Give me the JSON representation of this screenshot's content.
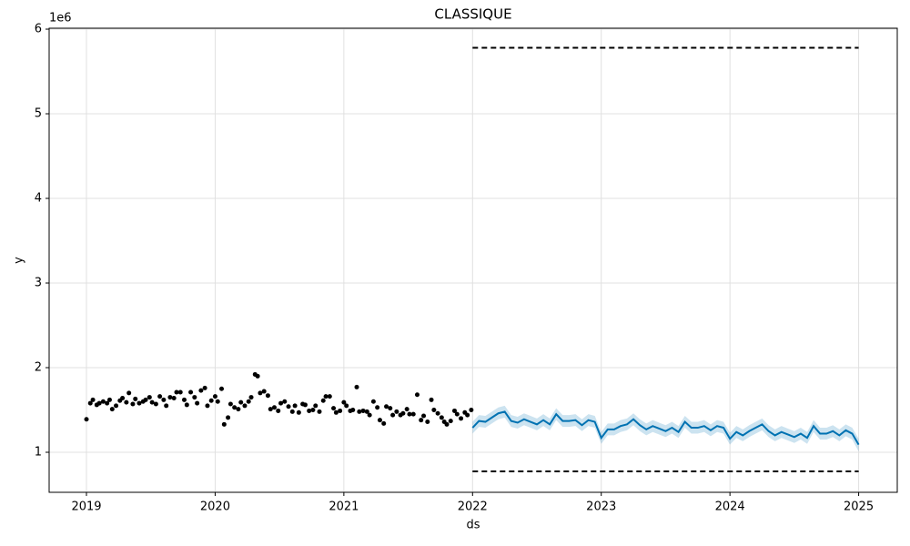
{
  "chart_data": {
    "type": "forecast",
    "title": "CLASSIQUE",
    "xlabel": "ds",
    "ylabel": "y",
    "y_offset_label": "1e6",
    "xlim": [
      2018.71,
      2025.3
    ],
    "xticks": [
      2019,
      2020,
      2021,
      2022,
      2023,
      2024,
      2025
    ],
    "ylim": [
      0.527,
      6.011
    ],
    "yticks": [
      1,
      2,
      3,
      4,
      5,
      6
    ],
    "grid": true,
    "points": {
      "color": "#000000",
      "x": [
        2019.0,
        2019.03,
        2019.05,
        2019.08,
        2019.1,
        2019.13,
        2019.16,
        2019.18,
        2019.2,
        2019.23,
        2019.26,
        2019.28,
        2019.31,
        2019.33,
        2019.36,
        2019.38,
        2019.41,
        2019.44,
        2019.46,
        2019.49,
        2019.51,
        2019.54,
        2019.57,
        2019.6,
        2019.62,
        2019.65,
        2019.68,
        2019.7,
        2019.73,
        2019.76,
        2019.78,
        2019.81,
        2019.84,
        2019.86,
        2019.89,
        2019.92,
        2019.94,
        2019.97,
        2020.0,
        2020.02,
        2020.05,
        2020.07,
        2020.1,
        2020.12,
        2020.15,
        2020.18,
        2020.2,
        2020.23,
        2020.26,
        2020.28,
        2020.31,
        2020.33,
        2020.35,
        2020.38,
        2020.41,
        2020.43,
        2020.46,
        2020.49,
        2020.51,
        2020.54,
        2020.57,
        2020.6,
        2020.62,
        2020.65,
        2020.68,
        2020.7,
        2020.73,
        2020.76,
        2020.78,
        2020.81,
        2020.84,
        2020.86,
        2020.89,
        2020.92,
        2020.94,
        2020.97,
        2021.0,
        2021.02,
        2021.05,
        2021.07,
        2021.1,
        2021.12,
        2021.15,
        2021.18,
        2021.2,
        2021.23,
        2021.26,
        2021.28,
        2021.31,
        2021.33,
        2021.36,
        2021.38,
        2021.41,
        2021.44,
        2021.46,
        2021.49,
        2021.51,
        2021.54,
        2021.57,
        2021.6,
        2021.62,
        2021.65,
        2021.68,
        2021.7,
        2021.73,
        2021.76,
        2021.78,
        2021.8,
        2021.83,
        2021.86,
        2021.88,
        2021.91,
        2021.94,
        2021.96,
        2021.99
      ],
      "values": [
        1.39,
        1.58,
        1.62,
        1.56,
        1.58,
        1.6,
        1.58,
        1.62,
        1.51,
        1.55,
        1.61,
        1.64,
        1.59,
        1.7,
        1.57,
        1.63,
        1.58,
        1.6,
        1.62,
        1.65,
        1.59,
        1.57,
        1.66,
        1.62,
        1.55,
        1.65,
        1.64,
        1.71,
        1.71,
        1.62,
        1.56,
        1.71,
        1.65,
        1.58,
        1.73,
        1.76,
        1.55,
        1.61,
        1.66,
        1.6,
        1.75,
        1.33,
        1.41,
        1.57,
        1.53,
        1.51,
        1.59,
        1.55,
        1.6,
        1.65,
        1.92,
        1.9,
        1.7,
        1.72,
        1.67,
        1.51,
        1.53,
        1.49,
        1.58,
        1.6,
        1.54,
        1.48,
        1.55,
        1.47,
        1.57,
        1.56,
        1.49,
        1.5,
        1.55,
        1.48,
        1.61,
        1.66,
        1.66,
        1.52,
        1.47,
        1.49,
        1.59,
        1.55,
        1.49,
        1.5,
        1.77,
        1.48,
        1.49,
        1.48,
        1.44,
        1.6,
        1.53,
        1.38,
        1.34,
        1.54,
        1.52,
        1.44,
        1.48,
        1.44,
        1.46,
        1.51,
        1.45,
        1.45,
        1.68,
        1.38,
        1.43,
        1.36,
        1.62,
        1.5,
        1.46,
        1.41,
        1.36,
        1.33,
        1.37,
        1.49,
        1.45,
        1.4,
        1.47,
        1.44,
        1.5
      ]
    },
    "forecast": {
      "color": "#0072b2",
      "band_color": "#0072b2",
      "x": [
        2022.0,
        2022.05,
        2022.1,
        2022.15,
        2022.2,
        2022.25,
        2022.3,
        2022.35,
        2022.4,
        2022.45,
        2022.5,
        2022.55,
        2022.6,
        2022.65,
        2022.7,
        2022.75,
        2022.8,
        2022.85,
        2022.9,
        2022.95,
        2023.0,
        2023.05,
        2023.1,
        2023.15,
        2023.2,
        2023.25,
        2023.3,
        2023.35,
        2023.4,
        2023.45,
        2023.5,
        2023.55,
        2023.6,
        2023.65,
        2023.7,
        2023.75,
        2023.8,
        2023.85,
        2023.9,
        2023.95,
        2024.0,
        2024.05,
        2024.1,
        2024.15,
        2024.2,
        2024.25,
        2024.3,
        2024.35,
        2024.4,
        2024.45,
        2024.5,
        2024.55,
        2024.6,
        2024.65,
        2024.7,
        2024.75,
        2024.8,
        2024.85,
        2024.9,
        2024.95,
        2025.0
      ],
      "values": [
        1.29,
        1.37,
        1.36,
        1.41,
        1.46,
        1.48,
        1.37,
        1.35,
        1.39,
        1.36,
        1.33,
        1.38,
        1.33,
        1.45,
        1.37,
        1.37,
        1.38,
        1.32,
        1.38,
        1.36,
        1.17,
        1.27,
        1.27,
        1.31,
        1.33,
        1.39,
        1.32,
        1.27,
        1.31,
        1.28,
        1.25,
        1.29,
        1.24,
        1.36,
        1.29,
        1.29,
        1.31,
        1.26,
        1.31,
        1.29,
        1.16,
        1.24,
        1.2,
        1.25,
        1.29,
        1.33,
        1.25,
        1.2,
        1.24,
        1.21,
        1.18,
        1.22,
        1.17,
        1.31,
        1.22,
        1.22,
        1.25,
        1.2,
        1.26,
        1.22,
        1.09
      ],
      "lower": [
        1.22,
        1.3,
        1.29,
        1.34,
        1.39,
        1.41,
        1.3,
        1.28,
        1.32,
        1.29,
        1.26,
        1.31,
        1.26,
        1.38,
        1.3,
        1.3,
        1.31,
        1.25,
        1.31,
        1.29,
        1.1,
        1.2,
        1.2,
        1.24,
        1.26,
        1.32,
        1.25,
        1.2,
        1.24,
        1.21,
        1.18,
        1.22,
        1.17,
        1.29,
        1.22,
        1.22,
        1.24,
        1.19,
        1.24,
        1.22,
        1.09,
        1.17,
        1.13,
        1.18,
        1.22,
        1.26,
        1.18,
        1.13,
        1.17,
        1.14,
        1.11,
        1.15,
        1.1,
        1.24,
        1.15,
        1.15,
        1.18,
        1.13,
        1.19,
        1.15,
        1.01
      ],
      "upper": [
        1.36,
        1.44,
        1.43,
        1.48,
        1.53,
        1.55,
        1.44,
        1.42,
        1.46,
        1.43,
        1.4,
        1.45,
        1.4,
        1.52,
        1.44,
        1.44,
        1.45,
        1.39,
        1.45,
        1.43,
        1.24,
        1.34,
        1.34,
        1.38,
        1.4,
        1.46,
        1.39,
        1.34,
        1.38,
        1.35,
        1.32,
        1.36,
        1.31,
        1.43,
        1.36,
        1.36,
        1.38,
        1.33,
        1.38,
        1.36,
        1.23,
        1.31,
        1.27,
        1.32,
        1.36,
        1.4,
        1.32,
        1.27,
        1.31,
        1.28,
        1.25,
        1.29,
        1.24,
        1.38,
        1.29,
        1.29,
        1.32,
        1.27,
        1.33,
        1.29,
        1.16
      ]
    },
    "cap": 5.78,
    "floor": 0.774,
    "limit_color": "#000000"
  }
}
